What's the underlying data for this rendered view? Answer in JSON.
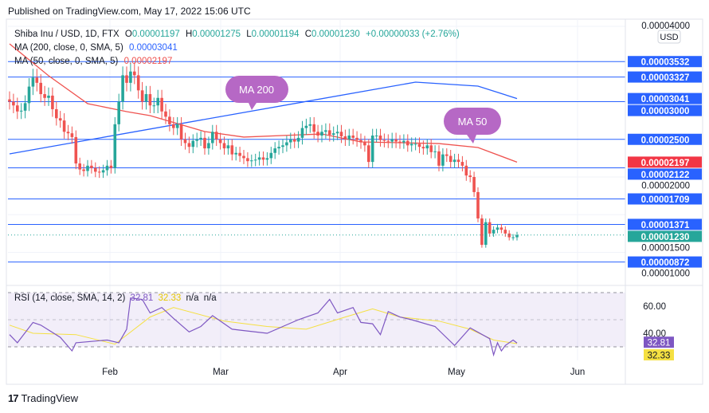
{
  "header": {
    "published": "Published on TradingView.com, May 17, 2022 15:06 UTC"
  },
  "legend": {
    "symbol": "Shiba Inu / USD, 1D, FTX",
    "o_label": "O",
    "o": "0.00001197",
    "h_label": "H",
    "h": "0.00001275",
    "l_label": "L",
    "l": "0.00001194",
    "c_label": "C",
    "c": "0.00001230",
    "change": "+0.00000033 (+2.76%)",
    "ma200_label": "MA (200, close, 0, SMA, 5)",
    "ma200_value": "0.00003041",
    "ma50_label": "MA (50, close, 0, SMA, 5)",
    "ma50_value": "0.00002197",
    "rsi_label": "RSI (14, close, SMA, 14, 2)",
    "rsi_value": "32.81",
    "rsi_ma_value": "32.33",
    "rsi_na1": "n/a",
    "rsi_na2": "n/a"
  },
  "currency_button": "USD",
  "callouts": {
    "ma200": "MA 200",
    "ma50": "MA 50"
  },
  "colors": {
    "up": "#26a69a",
    "down": "#ef5350",
    "level": "#2962ff",
    "ma200": "#2962ff",
    "ma50": "#ef5350",
    "rsi": "#7e57c2",
    "rsi_ma": "#f5e042",
    "callout": "#b668c5"
  },
  "chart_data": {
    "type": "candlestick",
    "title": "Shiba Inu / USD, 1D, FTX",
    "x_start": "2022-01-07",
    "x_end": "2022-05-17",
    "x_ticks": [
      "Feb",
      "Mar",
      "Apr",
      "May",
      "Jun"
    ],
    "y_ticks": [
      "0.00004000",
      "0.00002000",
      "0.00001500",
      "0.00001000"
    ],
    "y_tick_values": [
      4e-05,
      2e-05,
      1.5e-05,
      1e-05
    ],
    "closes": [
      3e-05,
      2.95e-05,
      2.87e-05,
      2.88e-05,
      2.98e-05,
      3.2e-05,
      3.32e-05,
      3.25e-05,
      3.1e-05,
      3.05e-05,
      3.08e-05,
      2.9e-05,
      2.78e-05,
      2.75e-05,
      2.6e-05,
      2.58e-05,
      2.53e-05,
      2.18e-05,
      2.1e-05,
      2.08e-05,
      2.15e-05,
      2.12e-05,
      2.07e-05,
      2.06e-05,
      2.09e-05,
      2.15e-05,
      2.12e-05,
      2.7e-05,
      3e-05,
      3.35e-05,
      3.25e-05,
      3.4e-05,
      3.35e-05,
      3.15e-05,
      3e-05,
      3.1e-05,
      2.95e-05,
      2.95e-05,
      3.05e-05,
      2.87e-05,
      2.8e-05,
      2.7e-05,
      2.65e-05,
      2.7e-05,
      2.5e-05,
      2.45e-05,
      2.4e-05,
      2.48e-05,
      2.5e-05,
      2.52e-05,
      2.38e-05,
      2.45e-05,
      2.6e-05,
      2.5e-05,
      2.45e-05,
      2.38e-05,
      2.42e-05,
      2.3e-05,
      2.32e-05,
      2.28e-05,
      2.25e-05,
      2.21e-05,
      2.22e-05,
      2.23e-05,
      2.26e-05,
      2.23e-05,
      2.25e-05,
      2.32e-05,
      2.38e-05,
      2.4e-05,
      2.42e-05,
      2.46e-05,
      2.5e-05,
      2.47e-05,
      2.52e-05,
      2.65e-05,
      2.68e-05,
      2.7e-05,
      2.6e-05,
      2.55e-05,
      2.6e-05,
      2.62e-05,
      2.56e-05,
      2.58e-05,
      2.6e-05,
      2.54e-05,
      2.5e-05,
      2.55e-05,
      2.52e-05,
      2.49e-05,
      2.46e-05,
      2.42e-05,
      2.2e-05,
      2.55e-05,
      2.55e-05,
      2.49e-05,
      2.48e-05,
      2.47e-05,
      2.5e-05,
      2.47e-05,
      2.46e-05,
      2.48e-05,
      2.42e-05,
      2.44e-05,
      2.44e-05,
      2.4e-05,
      2.38e-05,
      2.42e-05,
      2.33e-05,
      2.34e-05,
      2.15e-05,
      2.3e-05,
      2.28e-05,
      2.2e-05,
      2.23e-05,
      2.2e-05,
      2.15e-05,
      2.02e-05,
      2e-05,
      1.8e-05,
      1.45e-05,
      1.1e-05,
      1.4e-05,
      1.25e-05,
      1.3e-05,
      1.33e-05,
      1.3e-05,
      1.25e-05,
      1.2e-05,
      1.2e-05,
      1.23e-05
    ],
    "ma200": [
      [
        0,
        2.307e-05
      ],
      [
        104,
        3.259e-05
      ],
      [
        120,
        3.206e-05
      ],
      [
        130,
        3.041e-05
      ]
    ],
    "ma50": [
      [
        0,
        3.767e-05
      ],
      [
        10,
        3.344e-05
      ],
      [
        20,
        2.974e-05
      ],
      [
        30,
        2.868e-05
      ],
      [
        36,
        2.815e-05
      ],
      [
        50,
        2.603e-05
      ],
      [
        60,
        2.53e-05
      ],
      [
        80,
        2.571e-05
      ],
      [
        90,
        2.466e-05
      ],
      [
        110,
        2.444e-05
      ],
      [
        120,
        2.392e-05
      ],
      [
        130,
        2.197e-05
      ]
    ],
    "levels": [
      {
        "value": 3.532e-05,
        "label": "0.00003532"
      },
      {
        "value": 3.327e-05,
        "label": "0.00003327"
      },
      {
        "value": 3e-05,
        "label": "0.00003000"
      },
      {
        "value": 2.5e-05,
        "label": "0.00002500"
      },
      {
        "value": 2.122e-05,
        "label": "0.00002122"
      },
      {
        "value": 1.709e-05,
        "label": "0.00001709"
      },
      {
        "value": 1.371e-05,
        "label": "0.00001371"
      },
      {
        "value": 8.72e-06,
        "label": "0.00000872"
      }
    ],
    "badges": [
      {
        "value": 3.041e-05,
        "label": "0.00003041",
        "kind": "ma200"
      },
      {
        "value": 2.197e-05,
        "label": "0.00002197",
        "kind": "ma50"
      },
      {
        "value": 1.23e-05,
        "label": "0.00001230",
        "kind": "last"
      }
    ],
    "rsi": {
      "y_ticks": [
        "60.00",
        "40.00"
      ],
      "y_tick_values": [
        60,
        40
      ],
      "band": [
        30,
        70
      ],
      "values": [
        [
          0,
          39
        ],
        [
          2,
          33
        ],
        [
          6,
          48
        ],
        [
          8,
          46
        ],
        [
          13,
          37
        ],
        [
          16,
          27
        ],
        [
          17,
          33
        ],
        [
          25,
          35
        ],
        [
          28,
          33
        ],
        [
          30,
          43
        ],
        [
          31,
          66
        ],
        [
          34,
          65
        ],
        [
          36,
          55
        ],
        [
          39,
          59
        ],
        [
          42,
          51
        ],
        [
          46,
          41
        ],
        [
          49,
          45
        ],
        [
          52,
          53
        ],
        [
          57,
          43
        ],
        [
          60,
          42
        ],
        [
          66,
          40
        ],
        [
          70,
          45
        ],
        [
          74,
          50
        ],
        [
          79,
          55
        ],
        [
          82,
          65
        ],
        [
          84,
          55
        ],
        [
          88,
          59
        ],
        [
          90,
          48
        ],
        [
          93,
          47
        ],
        [
          95,
          39
        ],
        [
          97,
          56
        ],
        [
          100,
          52
        ],
        [
          103,
          50
        ],
        [
          109,
          45
        ],
        [
          114,
          31
        ],
        [
          118,
          44
        ],
        [
          123,
          36
        ],
        [
          124,
          24
        ],
        [
          125,
          33
        ],
        [
          126,
          27
        ],
        [
          127,
          31
        ],
        [
          129,
          35
        ],
        [
          130,
          32.81
        ]
      ],
      "ma": [
        [
          0,
          46
        ],
        [
          6,
          40
        ],
        [
          17,
          39
        ],
        [
          27,
          32
        ],
        [
          36,
          52
        ],
        [
          42,
          59
        ],
        [
          55,
          49
        ],
        [
          66,
          45
        ],
        [
          76,
          43
        ],
        [
          86,
          52
        ],
        [
          93,
          58
        ],
        [
          100,
          52
        ],
        [
          110,
          49
        ],
        [
          118,
          43
        ],
        [
          124,
          35
        ],
        [
          130,
          32.33
        ]
      ]
    }
  },
  "footer": {
    "brand": "TradingView"
  }
}
